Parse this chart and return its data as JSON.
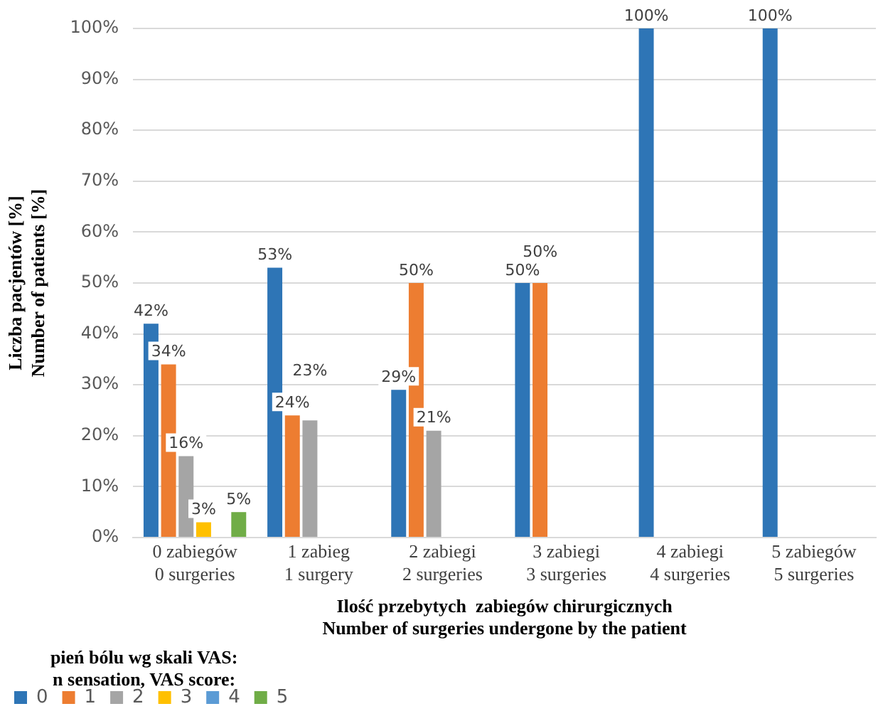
{
  "chart_data": {
    "type": "bar",
    "categories": [
      "0 zabiegów\n0 surgeries",
      "1 zabieg\n1 surgery",
      "2 zabiegi\n2 surgeries",
      "3 zabiegi\n3 surgeries",
      "4 zabiegi\n4 surgeries",
      "5 zabiegów\n5 surgeries"
    ],
    "xlabel": "Ilość przebytych  zabiegów chirurgicznych\nNumber of surgeries undergone by the patient",
    "ylabel": "Liczba pacjentów [%]\nNumber of patients [%]",
    "legend_title": "pień bólu wg skali VAS:\nn sensation, VAS score:",
    "series": [
      {
        "name": "0",
        "color": "#2e75b6",
        "values": [
          42,
          53,
          29,
          50,
          100,
          100
        ],
        "value_labels": [
          "42%",
          "53%",
          "29%",
          "50%",
          "100%",
          "100%"
        ]
      },
      {
        "name": "1",
        "color": "#ed7d31",
        "values": [
          34,
          24,
          50,
          50,
          null,
          null
        ],
        "value_labels": [
          "34%",
          "24%",
          "50%",
          "50%",
          null,
          null
        ]
      },
      {
        "name": "2",
        "color": "#a5a5a5",
        "values": [
          16,
          23,
          21,
          null,
          null,
          null
        ],
        "value_labels": [
          "16%",
          "23%",
          "21%",
          null,
          null,
          null
        ]
      },
      {
        "name": "3",
        "color": "#ffc000",
        "values": [
          3,
          null,
          null,
          null,
          null,
          null
        ],
        "value_labels": [
          "3%",
          null,
          null,
          null,
          null,
          null
        ]
      },
      {
        "name": "4",
        "color": "#5b9bd5",
        "values": [
          null,
          null,
          null,
          null,
          null,
          null
        ]
      },
      {
        "name": "5",
        "color": "#70ad47",
        "values": [
          5,
          null,
          null,
          null,
          null,
          null
        ],
        "value_labels": [
          "5%",
          null,
          null,
          null,
          null,
          null
        ]
      }
    ],
    "ylim": [
      0,
      100
    ],
    "yticks": [
      {
        "value": 0,
        "label": "0%"
      },
      {
        "value": 10,
        "label": "10%"
      },
      {
        "value": 20,
        "label": "20%"
      },
      {
        "value": 30,
        "label": "30%"
      },
      {
        "value": 40,
        "label": "40%"
      },
      {
        "value": 50,
        "label": "50%"
      },
      {
        "value": 60,
        "label": "60%"
      },
      {
        "value": 70,
        "label": "70%"
      },
      {
        "value": 80,
        "label": "80%"
      },
      {
        "value": 90,
        "label": "90%"
      },
      {
        "value": 100,
        "label": "100%"
      }
    ],
    "grid": "y",
    "legend": "bottom left"
  }
}
